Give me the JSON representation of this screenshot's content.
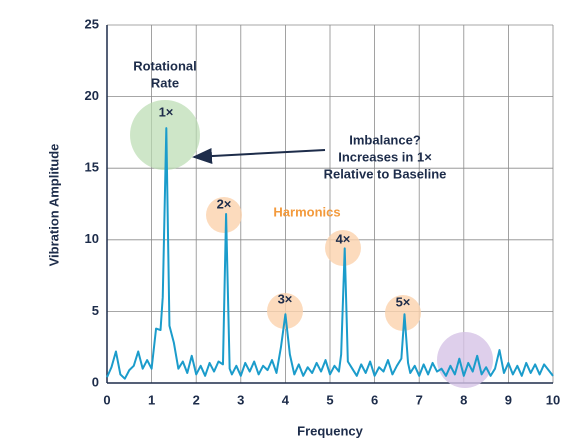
{
  "chart_data": {
    "type": "line",
    "xlabel": "Frequency",
    "ylabel": "Vibration Amplitude",
    "xlim": [
      0,
      10
    ],
    "ylim": [
      0,
      25
    ],
    "xticks": [
      0,
      1,
      2,
      3,
      4,
      5,
      6,
      7,
      8,
      9,
      10
    ],
    "yticks": [
      0,
      5,
      10,
      15,
      20,
      25
    ],
    "grid": true,
    "x": [
      0,
      0.1,
      0.2,
      0.3,
      0.4,
      0.5,
      0.6,
      0.7,
      0.8,
      0.9,
      1.0,
      1.1,
      1.2,
      1.25,
      1.33,
      1.4,
      1.5,
      1.6,
      1.7,
      1.8,
      1.9,
      2.0,
      2.1,
      2.2,
      2.3,
      2.4,
      2.5,
      2.6,
      2.67,
      2.75,
      2.8,
      2.9,
      3.0,
      3.1,
      3.2,
      3.3,
      3.4,
      3.5,
      3.6,
      3.7,
      3.8,
      3.9,
      4.0,
      4.1,
      4.2,
      4.3,
      4.4,
      4.5,
      4.6,
      4.7,
      4.8,
      4.9,
      5.0,
      5.1,
      5.2,
      5.25,
      5.33,
      5.4,
      5.5,
      5.6,
      5.7,
      5.8,
      5.9,
      6.0,
      6.1,
      6.2,
      6.3,
      6.4,
      6.5,
      6.6,
      6.67,
      6.75,
      6.8,
      6.9,
      7.0,
      7.1,
      7.2,
      7.3,
      7.4,
      7.5,
      7.6,
      7.7,
      7.8,
      7.9,
      8.0,
      8.1,
      8.2,
      8.3,
      8.4,
      8.5,
      8.6,
      8.7,
      8.8,
      8.9,
      9.0,
      9.1,
      9.2,
      9.3,
      9.4,
      9.5,
      9.6,
      9.7,
      9.8,
      9.9,
      10.0
    ],
    "series": [
      {
        "color": "#1b9ccb",
        "values": [
          0.4,
          1.1,
          2.2,
          0.6,
          0.3,
          0.9,
          1.2,
          2.2,
          1.0,
          1.6,
          1.0,
          3.8,
          3.7,
          6.0,
          17.8,
          4.0,
          2.8,
          1.0,
          1.5,
          0.7,
          1.9,
          0.6,
          1.2,
          0.5,
          1.4,
          0.8,
          1.5,
          1.3,
          11.8,
          1.0,
          0.6,
          1.2,
          0.5,
          1.4,
          0.8,
          1.5,
          0.6,
          1.2,
          0.9,
          1.6,
          0.7,
          2.5,
          4.8,
          2.0,
          0.6,
          1.3,
          0.5,
          1.1,
          0.7,
          1.4,
          0.8,
          1.6,
          0.6,
          1.2,
          0.8,
          2.0,
          9.4,
          1.5,
          1.0,
          0.5,
          1.3,
          0.7,
          1.5,
          0.5,
          1.1,
          0.8,
          1.6,
          0.6,
          1.2,
          1.7,
          4.8,
          1.4,
          0.7,
          1.2,
          0.5,
          1.3,
          0.6,
          1.4,
          0.8,
          1.0,
          0.5,
          1.2,
          0.6,
          1.7,
          0.5,
          1.4,
          0.8,
          1.9,
          0.6,
          1.1,
          0.5,
          1.0,
          2.3,
          0.7,
          1.4,
          0.6,
          1.2,
          0.5,
          1.4,
          0.7,
          1.3,
          0.6,
          1.3,
          0.9,
          0.5
        ]
      }
    ],
    "annotations": [
      {
        "text": [
          "Rotational",
          "Rate"
        ]
      },
      {
        "text": [
          "1×"
        ]
      },
      {
        "text": [
          "2×"
        ]
      },
      {
        "text": [
          "3×"
        ]
      },
      {
        "text": [
          "4×"
        ]
      },
      {
        "text": [
          "5×"
        ]
      },
      {
        "text": [
          "Harmonics"
        ]
      },
      {
        "text": [
          "Imbalance?",
          "Increases in 1×",
          "Relative to Baseline"
        ]
      }
    ]
  }
}
